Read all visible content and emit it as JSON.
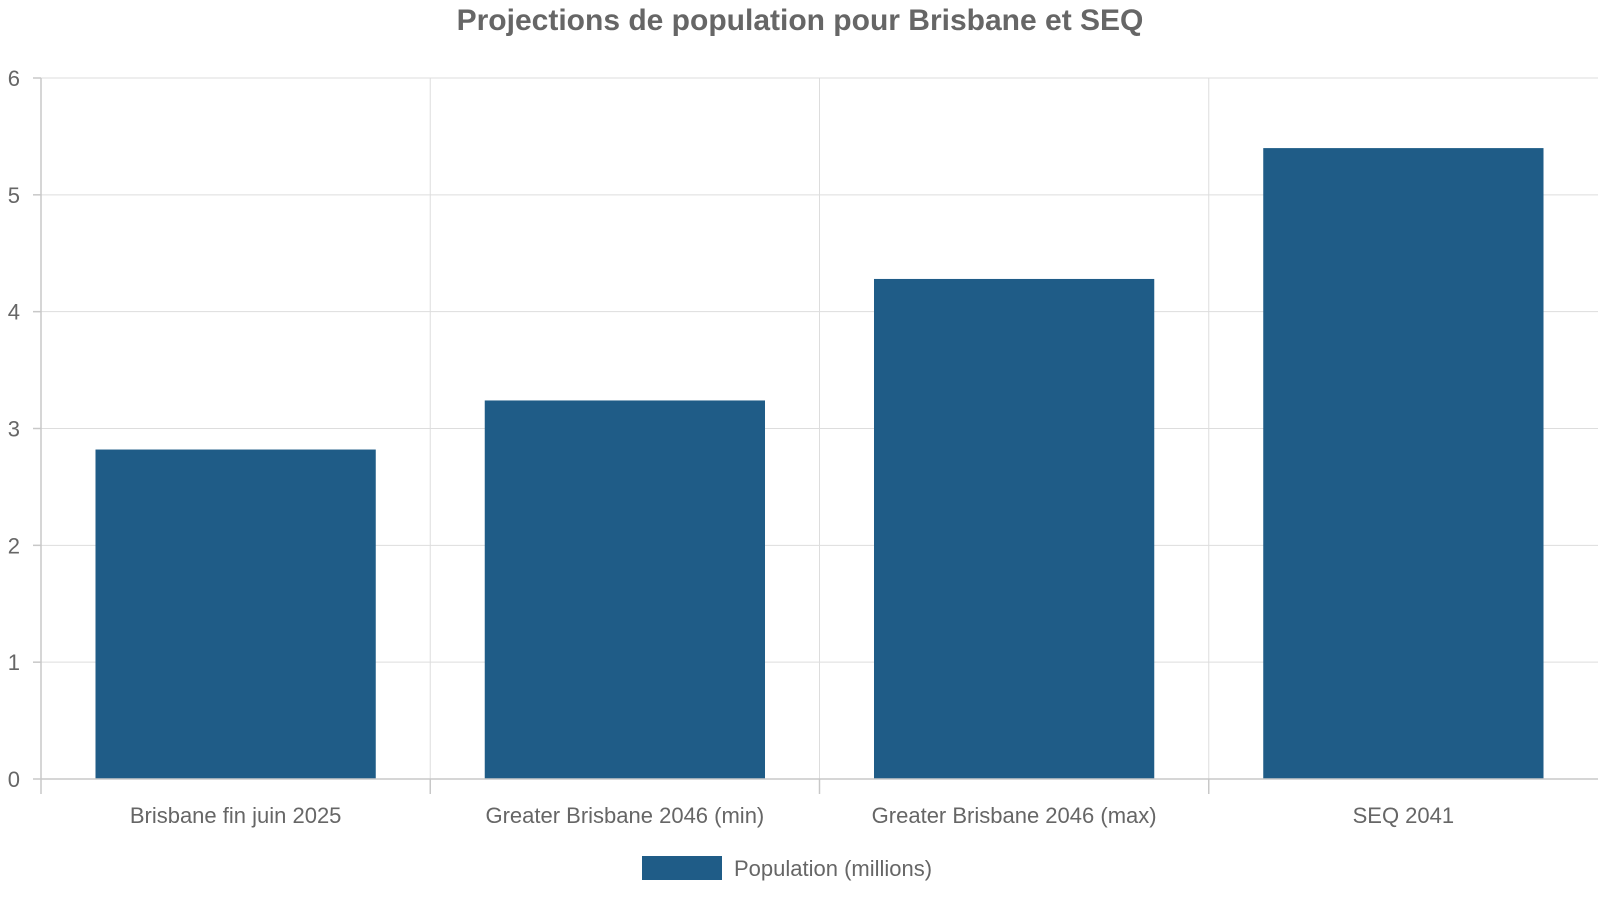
{
  "chart_data": {
    "type": "bar",
    "title": "Projections de population pour Brisbane et SEQ",
    "categories": [
      "Brisbane fin juin 2025",
      "Greater Brisbane 2046 (min)",
      "Greater Brisbane 2046 (max)",
      "SEQ 2041"
    ],
    "series": [
      {
        "name": "Population (millions)",
        "values": [
          2.82,
          3.24,
          4.28,
          5.4
        ],
        "color": "#1f5c87"
      }
    ],
    "ylim": [
      0,
      6
    ],
    "yticks": [
      "0",
      "1",
      "2",
      "3",
      "4",
      "5",
      "6"
    ],
    "xlabel": "",
    "ylabel": "",
    "grid": true,
    "legend_position": "bottom-center"
  }
}
